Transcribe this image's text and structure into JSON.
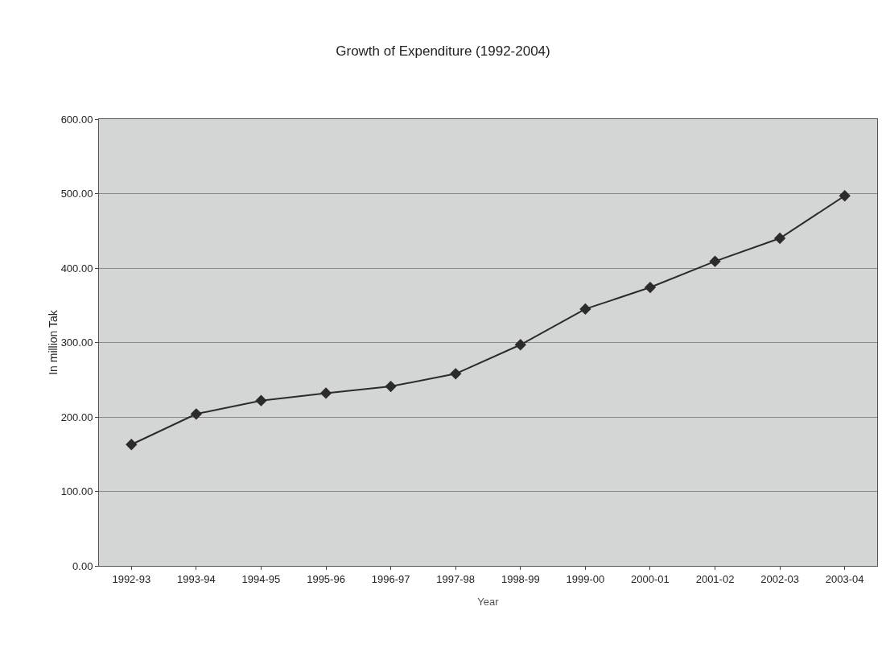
{
  "chart_data": {
    "type": "line",
    "title": "Growth of Expenditure (1992-2004)",
    "xlabel": "Year",
    "ylabel": "In million Tak",
    "categories": [
      "1992-93",
      "1993-94",
      "1994-95",
      "1995-96",
      "1996-97",
      "1997-98",
      "1998-99",
      "1999-00",
      "2000-01",
      "2001-02",
      "2002-03",
      "2003-04"
    ],
    "series": [
      {
        "color": "#2b2b2b",
        "values": [
          163,
          204,
          222,
          232,
          241,
          258,
          297,
          345,
          374,
          409,
          440,
          497
        ]
      }
    ],
    "ylim": [
      0,
      600
    ],
    "yticks": [
      {
        "value": 0,
        "label": "0.00"
      },
      {
        "value": 100,
        "label": "100.00"
      },
      {
        "value": 200,
        "label": "200.00"
      },
      {
        "value": 300,
        "label": "300.00"
      },
      {
        "value": 400,
        "label": "400.00"
      },
      {
        "value": 500,
        "label": "500.00"
      },
      {
        "value": 600,
        "label": "600.00"
      }
    ],
    "grid": "y",
    "legend": false,
    "marker": "diamond",
    "line_style": "solid"
  }
}
